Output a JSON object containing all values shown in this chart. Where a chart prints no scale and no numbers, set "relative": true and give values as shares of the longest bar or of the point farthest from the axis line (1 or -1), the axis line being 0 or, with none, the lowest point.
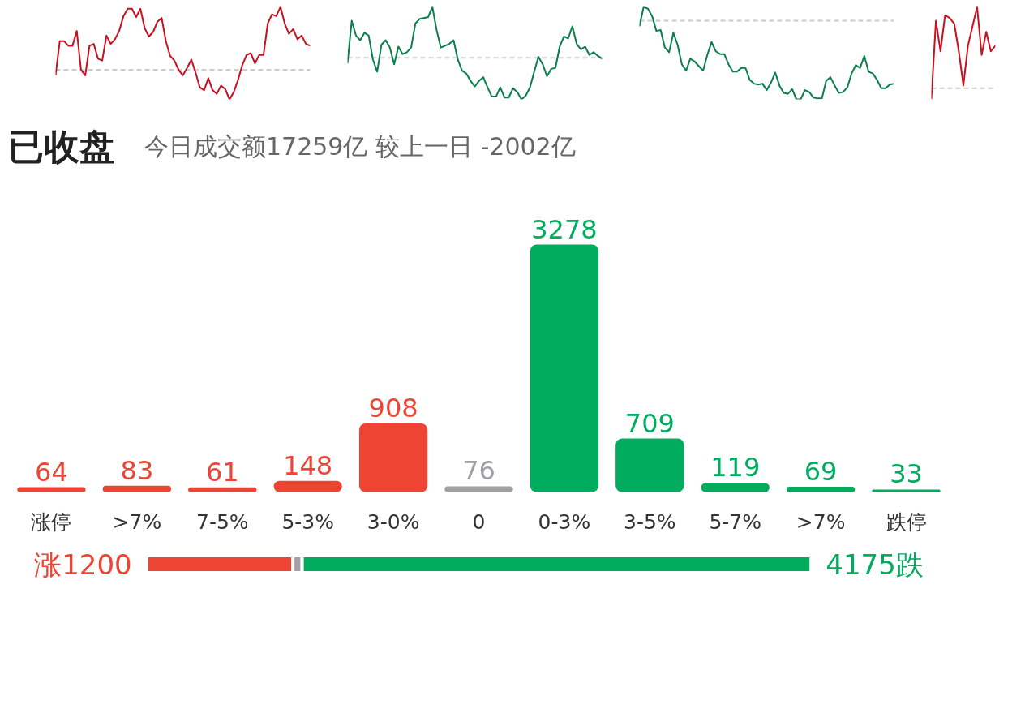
{
  "chart_data": [
    {
      "type": "line",
      "relative": true,
      "categories": [
        null,
        null,
        null,
        null,
        null,
        null,
        null,
        null,
        null,
        null,
        null,
        null,
        null,
        null,
        null,
        null,
        null,
        null,
        null,
        null,
        null,
        null,
        null,
        null,
        null,
        null,
        null,
        null,
        null,
        null,
        null,
        null,
        null,
        null,
        null,
        null,
        null,
        null,
        null,
        null,
        null,
        null,
        null,
        null,
        null,
        null,
        null,
        null,
        null,
        null,
        null,
        null,
        null,
        null,
        null,
        null,
        null,
        null,
        null,
        null,
        null
      ],
      "series": [
        {
          "color": "#c8101e",
          "values": [
            0.26,
            0.63,
            0.63,
            0.58,
            0.58,
            0.74,
            0.32,
            0.26,
            0.58,
            0.6,
            0.44,
            0.42,
            0.69,
            0.6,
            0.65,
            0.74,
            0.9,
            0.98,
            0.98,
            0.89,
            0.98,
            0.77,
            0.68,
            0.73,
            0.84,
            0.88,
            0.63,
            0.47,
            0.42,
            0.32,
            0.26,
            0.34,
            0.43,
            0.29,
            0.13,
            0.1,
            0.23,
            0.1,
            0.06,
            0.15,
            0.11,
            0,
            0.08,
            0.21,
            0.37,
            0.48,
            0.5,
            0.39,
            0.48,
            0.48,
            0.82,
            0.92,
            0.9,
            1,
            0.82,
            0.71,
            0.76,
            0.65,
            0.69,
            0.6,
            0.58
          ]
        }
      ],
      "ref_lines": [
        {
          "axis": "y",
          "value": 0.32,
          "color": "#cccccc",
          "line_style": "dashed"
        }
      ]
    },
    {
      "type": "line",
      "relative": true,
      "categories": [
        null,
        null,
        null,
        null,
        null,
        null,
        null,
        null,
        null,
        null,
        null,
        null,
        null,
        null,
        null,
        null,
        null,
        null,
        null,
        null,
        null,
        null,
        null,
        null,
        null,
        null,
        null,
        null,
        null,
        null,
        null,
        null,
        null,
        null,
        null,
        null,
        null,
        null,
        null,
        null,
        null,
        null,
        null,
        null,
        null,
        null,
        null,
        null,
        null,
        null,
        null,
        null,
        null,
        null,
        null,
        null,
        null,
        null,
        null,
        null,
        null
      ],
      "series": [
        {
          "color": "#0a7f4a",
          "values": [
            0.39,
            0.85,
            0.69,
            0.64,
            0.72,
            0.69,
            0.43,
            0.3,
            0.59,
            0.64,
            0.56,
            0.38,
            0.57,
            0.49,
            0.51,
            0.56,
            0.82,
            0.87,
            0.88,
            0.89,
            1,
            0.75,
            0.56,
            0.58,
            0.6,
            0.64,
            0.43,
            0.31,
            0.28,
            0.2,
            0.14,
            0.2,
            0.24,
            0.13,
            0.03,
            0.03,
            0.13,
            0.02,
            0.02,
            0.12,
            0.08,
            0,
            0.04,
            0.13,
            0.3,
            0.46,
            0.38,
            0.25,
            0.33,
            0.34,
            0.57,
            0.68,
            0.66,
            0.79,
            0.6,
            0.54,
            0.57,
            0.48,
            0.51,
            0.47,
            0.44
          ]
        }
      ],
      "ref_lines": [
        {
          "axis": "y",
          "value": 0.45,
          "color": "#cccccc",
          "line_style": "dashed"
        }
      ]
    },
    {
      "type": "line",
      "relative": true,
      "categories": [
        null,
        null,
        null,
        null,
        null,
        null,
        null,
        null,
        null,
        null,
        null,
        null,
        null,
        null,
        null,
        null,
        null,
        null,
        null,
        null,
        null,
        null,
        null,
        null,
        null,
        null,
        null,
        null,
        null,
        null,
        null,
        null,
        null,
        null,
        null,
        null,
        null,
        null,
        null,
        null,
        null,
        null,
        null,
        null,
        null,
        null,
        null,
        null,
        null,
        null,
        null,
        null,
        null,
        null,
        null,
        null,
        null,
        null,
        null,
        null,
        null
      ],
      "series": [
        {
          "color": "#0a7f4a",
          "values": [
            0.79,
            1,
            0.98,
            0.9,
            0.74,
            0.75,
            0.56,
            0.51,
            0.72,
            0.59,
            0.38,
            0.31,
            0.44,
            0.41,
            0.36,
            0.31,
            0.48,
            0.62,
            0.52,
            0.49,
            0.49,
            0.38,
            0.3,
            0.3,
            0.34,
            0.34,
            0.21,
            0.17,
            0.16,
            0.17,
            0.1,
            0.18,
            0.29,
            0.15,
            0.07,
            0.06,
            0.11,
            0,
            0,
            0.1,
            0.08,
            0.02,
            0.01,
            0.01,
            0.2,
            0.24,
            0.15,
            0.07,
            0.08,
            0.13,
            0.28,
            0.37,
            0.34,
            0.47,
            0.3,
            0.28,
            0.21,
            0.12,
            0.12,
            0.16,
            0.17
          ]
        }
      ],
      "ref_lines": [
        {
          "axis": "y",
          "value": 0.85,
          "color": "#cccccc",
          "line_style": "dashed"
        }
      ]
    },
    {
      "type": "line",
      "relative": true,
      "categories": [
        null,
        null,
        null,
        null,
        null,
        null,
        null,
        null,
        null,
        null,
        null,
        null,
        null,
        null,
        null
      ],
      "series": [
        {
          "color": "#c8101e",
          "values": [
            0,
            0.85,
            0.52,
            0.91,
            0.88,
            0.82,
            0.52,
            0.15,
            0.58,
            0.79,
            1,
            0.48,
            0.73,
            0.52,
            0.58
          ]
        }
      ],
      "ref_lines": [
        {
          "axis": "y",
          "value": 0.12,
          "color": "#cccccc",
          "line_style": "dashed"
        }
      ]
    },
    {
      "type": "bar",
      "title": "已收盘",
      "subtitle": "今日成交额17259亿  较上一日 -2002亿",
      "categories": [
        "涨停",
        ">7%",
        "7-5%",
        "5-3%",
        "3-0%",
        "0",
        "0-3%",
        "3-5%",
        "5-7%",
        ">7%",
        "跌停"
      ],
      "values": [
        64,
        83,
        61,
        148,
        908,
        76,
        3278,
        709,
        119,
        69,
        33
      ],
      "colors": [
        "#ee4433",
        "#ee4433",
        "#ee4433",
        "#ee4433",
        "#ee4433",
        "#a0a0a4",
        "#00ad5f",
        "#00ad5f",
        "#00ad5f",
        "#00ad5f",
        "#00ad5f"
      ],
      "data_labels": true
    },
    {
      "type": "bar",
      "orientation": "horizontal",
      "stacked": true,
      "categories": [
        null
      ],
      "series": [
        {
          "color": "#ee4433",
          "values": [
            1200
          ],
          "value_labels": [
            "涨1200"
          ]
        },
        {
          "color": "#a0a0a4",
          "values": [
            76
          ],
          "value_labels": [
            null
          ]
        },
        {
          "color": "#00ad5f",
          "values": [
            4175
          ],
          "value_labels": [
            "4175跌"
          ]
        }
      ]
    }
  ]
}
